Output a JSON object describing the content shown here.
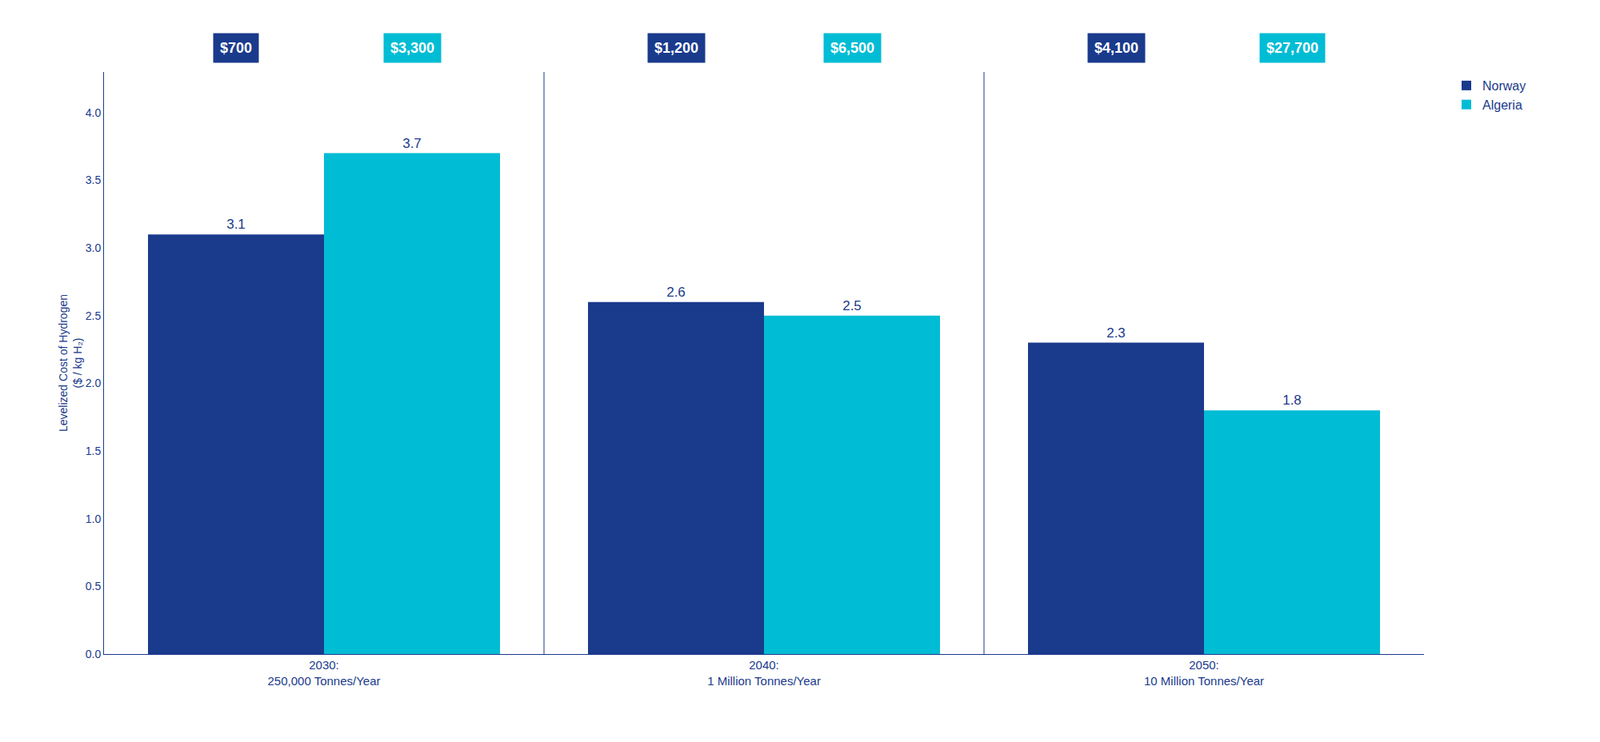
{
  "chart_data": {
    "type": "bar",
    "categories": [
      "2030:\n250,000 Tonnes/Year",
      "2040:\n1 Million Tonnes/Year",
      "2050:\n10 Million Tonnes/Year"
    ],
    "series": [
      {
        "name": "Norway",
        "color": "#1A3A8C",
        "values": [
          3.1,
          2.6,
          2.3
        ],
        "annotations": [
          "$700",
          "$1,200",
          "$4,100"
        ]
      },
      {
        "name": "Algeria",
        "color": "#00BCD4",
        "values": [
          3.7,
          2.5,
          1.8
        ],
        "annotations": [
          "$3,300",
          "$6,500",
          "$27,700"
        ]
      }
    ],
    "y_label": "Levelized Cost of Hydrogen\n($ / kg H₂)",
    "ylim": [
      0,
      4.3
    ],
    "yticks": [
      {
        "value": 0.0,
        "label": "0.0"
      },
      0.5,
      {
        "value": 1.0,
        "label": "1.0"
      },
      1.5,
      {
        "value": 2.0,
        "label": "2.0"
      },
      2.5,
      {
        "value": 3.0,
        "label": "3.0"
      },
      3.5,
      {
        "value": 4.0,
        "label": "4.0"
      }
    ],
    "data_labels": true,
    "grid": false,
    "legend": "upper right"
  }
}
